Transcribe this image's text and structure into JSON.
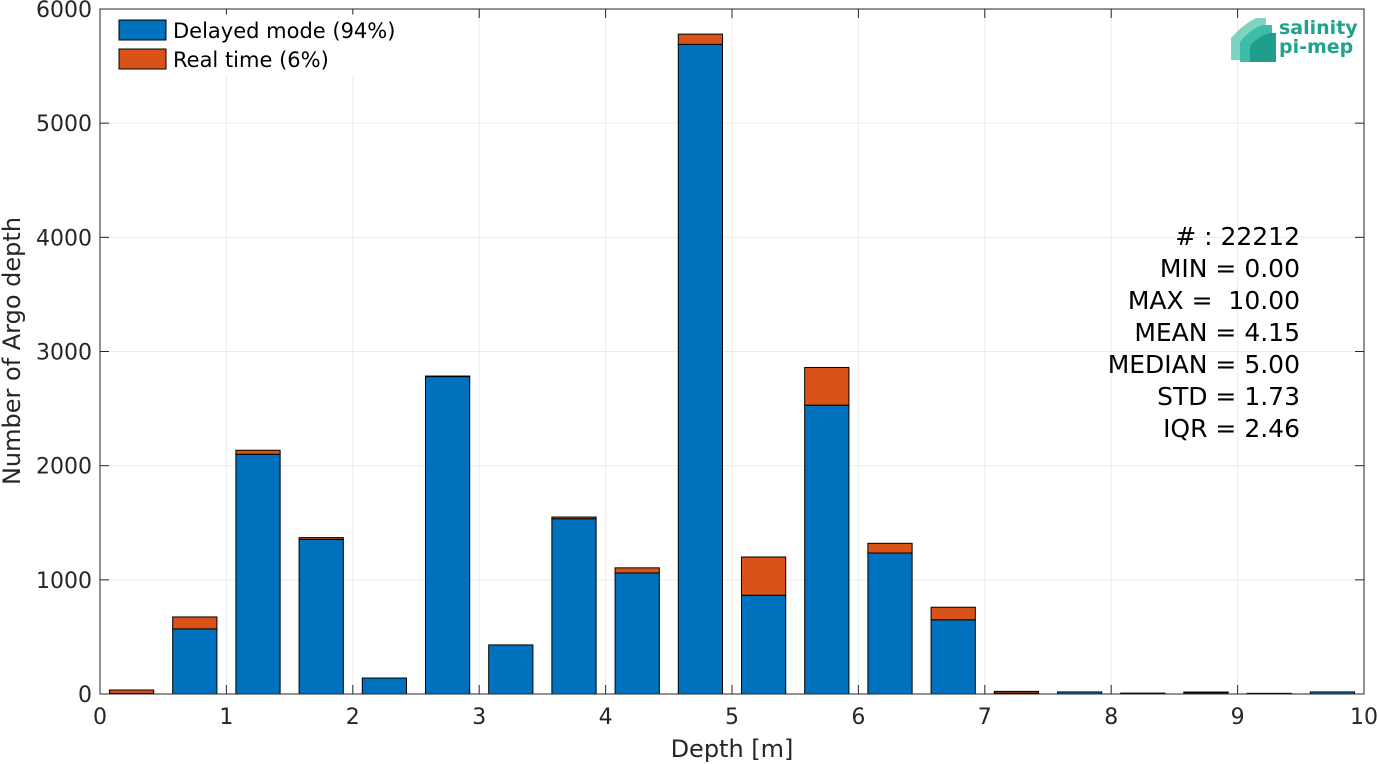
{
  "chart_data": {
    "type": "bar",
    "stacked": true,
    "xlabel": "Depth [m]",
    "ylabel": "Number of Argo depth",
    "xlim": [
      0,
      10
    ],
    "ylim": [
      0,
      6000
    ],
    "xticks": [
      0,
      1,
      2,
      3,
      4,
      5,
      6,
      7,
      8,
      9,
      10
    ],
    "yticks": [
      0,
      1000,
      2000,
      3000,
      4000,
      5000,
      6000
    ],
    "grid": true,
    "bar_width": 0.35,
    "bar_centers": [
      0.25,
      0.75,
      1.25,
      1.75,
      2.25,
      2.75,
      3.25,
      3.75,
      4.25,
      4.75,
      5.25,
      5.75,
      6.25,
      6.75,
      7.25,
      7.75,
      8.25,
      8.75,
      9.25,
      9.75
    ],
    "series": [
      {
        "name": "Delayed mode (94%)",
        "color": "#0072BD",
        "values": [
          5,
          570,
          2100,
          1355,
          140,
          2780,
          430,
          1535,
          1060,
          5690,
          865,
          2530,
          1235,
          650,
          8,
          18,
          8,
          12,
          6,
          18
        ]
      },
      {
        "name": "Real time (6%)",
        "color": "#D95319",
        "values": [
          30,
          105,
          35,
          15,
          0,
          5,
          0,
          15,
          45,
          90,
          335,
          330,
          85,
          110,
          15,
          0,
          0,
          5,
          0,
          0
        ]
      }
    ],
    "legend_position": "top-left",
    "stats": [
      "# : 22212",
      "MIN = 0.00",
      "MAX =  10.00",
      "MEAN = 4.15",
      "MEDIAN = 5.00",
      "STD = 1.73",
      "IQR = 2.46"
    ]
  },
  "logo": {
    "line1": "salinity",
    "line2": "pi-mep",
    "color": "#1fa38f"
  }
}
